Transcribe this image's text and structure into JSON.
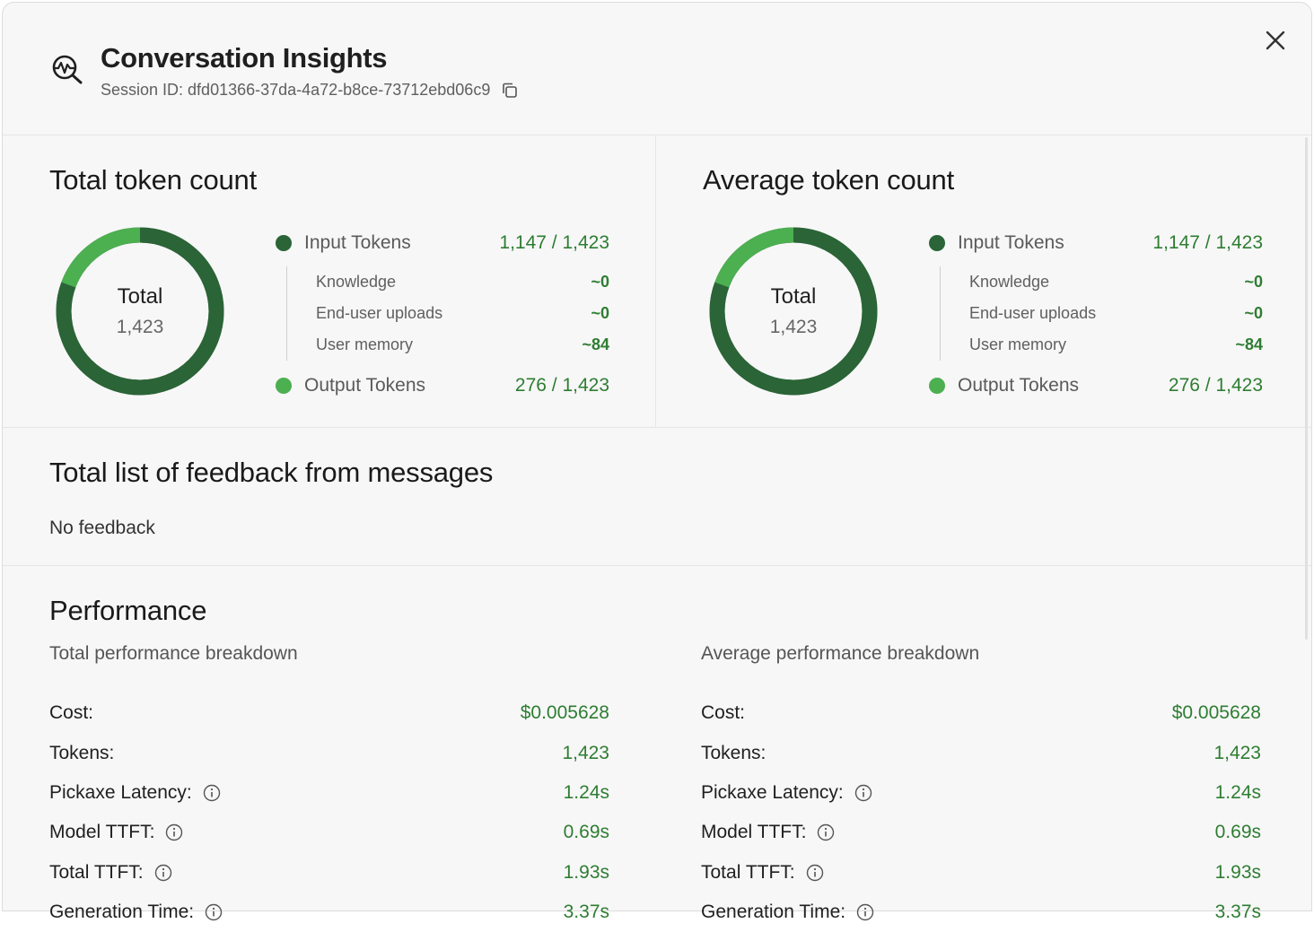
{
  "header": {
    "title": "Conversation Insights",
    "session_label": "Session ID: dfd01366-37da-4a72-b8ce-73712ebd06c9",
    "icons": {
      "app": "magnify-pulse-icon",
      "copy": "copy-icon",
      "close": "close-icon"
    }
  },
  "colors": {
    "dark_green": "#2b6437",
    "light_green": "#4caf50",
    "value_green": "#2e7d32"
  },
  "total_tokens": {
    "title": "Total token count",
    "donut": {
      "label": "Total",
      "value": "1,423",
      "input_fraction": 0.806,
      "output_fraction": 0.194
    },
    "input": {
      "name": "Input Tokens",
      "value": "1,147 / 1,423"
    },
    "subs": [
      {
        "name": "Knowledge",
        "value": "~0"
      },
      {
        "name": "End-user uploads",
        "value": "~0"
      },
      {
        "name": "User memory",
        "value": "~84"
      }
    ],
    "output": {
      "name": "Output Tokens",
      "value": "276 / 1,423"
    }
  },
  "average_tokens": {
    "title": "Average token count",
    "donut": {
      "label": "Total",
      "value": "1,423",
      "input_fraction": 0.806,
      "output_fraction": 0.194
    },
    "input": {
      "name": "Input Tokens",
      "value": "1,147 / 1,423"
    },
    "subs": [
      {
        "name": "Knowledge",
        "value": "~0"
      },
      {
        "name": "End-user uploads",
        "value": "~0"
      },
      {
        "name": "User memory",
        "value": "~84"
      }
    ],
    "output": {
      "name": "Output Tokens",
      "value": "276 / 1,423"
    }
  },
  "feedback": {
    "title": "Total list of feedback from messages",
    "empty_text": "No feedback"
  },
  "performance": {
    "title": "Performance",
    "total": {
      "subtitle": "Total performance breakdown",
      "rows": [
        {
          "label": "Cost:",
          "value": "$0.005628"
        },
        {
          "label": "Tokens:",
          "value": "1,423"
        },
        {
          "label": "Pickaxe Latency:",
          "value": "1.24s"
        },
        {
          "label": "Model TTFT:",
          "value": "0.69s"
        },
        {
          "label": "Total TTFT:",
          "value": "1.93s"
        },
        {
          "label": "Generation Time:",
          "value": "3.37s"
        }
      ]
    },
    "average": {
      "subtitle": "Average performance breakdown",
      "rows": [
        {
          "label": "Cost:",
          "value": "$0.005628"
        },
        {
          "label": "Tokens:",
          "value": "1,423"
        },
        {
          "label": "Pickaxe Latency:",
          "value": "1.24s"
        },
        {
          "label": "Model TTFT:",
          "value": "0.69s"
        },
        {
          "label": "Total TTFT:",
          "value": "1.93s"
        },
        {
          "label": "Generation Time:",
          "value": "3.37s"
        }
      ]
    }
  }
}
